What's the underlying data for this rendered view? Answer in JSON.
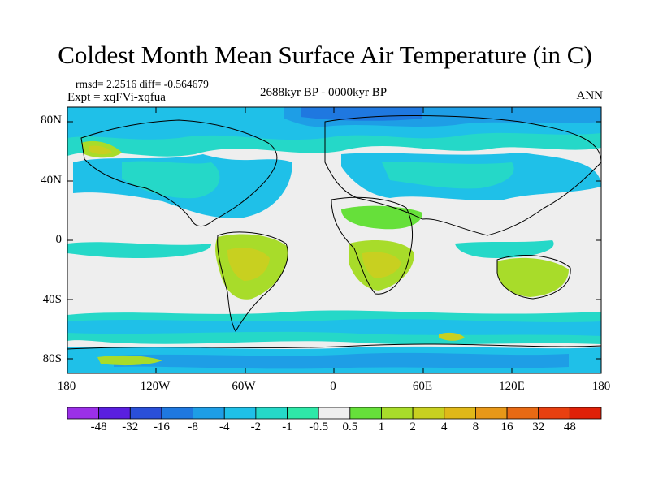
{
  "title": "Coldest Month Mean Surface Air Temperature (in C)",
  "stats": "rmsd= 2.2516 diff= -0.564679",
  "expt": "Expt = xqFVi-xqfua",
  "period": "2688kyr BP - 0000kyr BP",
  "season": "ANN",
  "lat_labels": [
    "80N",
    "40N",
    "0",
    "40S",
    "80S"
  ],
  "lon_labels": [
    "180",
    "120W",
    "60W",
    "0",
    "60E",
    "120E",
    "180"
  ],
  "colorbar": {
    "labels": [
      "-48",
      "-32",
      "-16",
      "-8",
      "-4",
      "-2",
      "-1",
      "-0.5",
      "0.5",
      "1",
      "2",
      "4",
      "8",
      "16",
      "32",
      "48"
    ],
    "colors": [
      "#9b30e8",
      "#5a1fe0",
      "#2a4fd8",
      "#1f78e0",
      "#1e9ee6",
      "#1fc0e8",
      "#25d8c8",
      "#2ee8a8",
      "#eeeeee",
      "#66e03a",
      "#a8dc2a",
      "#c8d020",
      "#e0b818",
      "#e89818",
      "#e86a14",
      "#e84010",
      "#e02008"
    ]
  },
  "map_extent": {
    "lon": [
      -180,
      180
    ],
    "lat": [
      -90,
      90
    ]
  }
}
